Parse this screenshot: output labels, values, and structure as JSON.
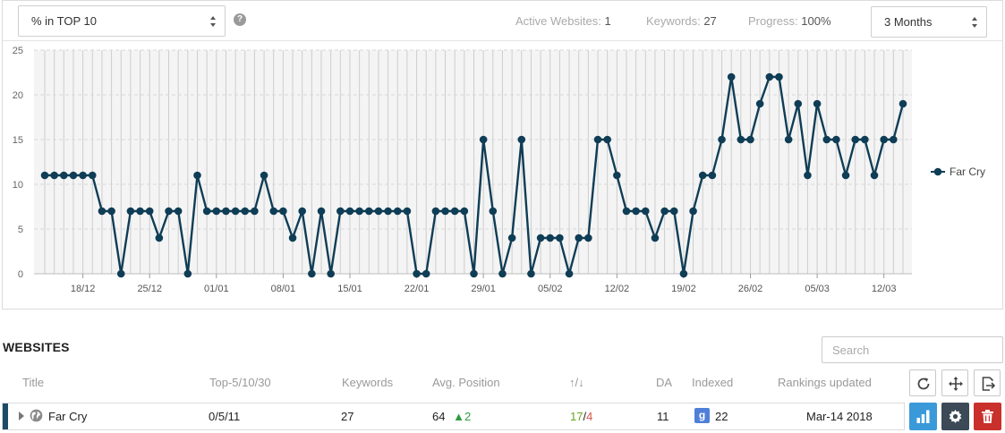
{
  "toolbar": {
    "metric_select": "% in TOP 10",
    "help": "?",
    "period_select": "3 Months",
    "stats": [
      {
        "label": "Active Websites: ",
        "value": "1"
      },
      {
        "label": "Keywords: ",
        "value": "27"
      },
      {
        "label": "Progress: ",
        "value": "100%"
      }
    ]
  },
  "chart_data": {
    "type": "line",
    "y_ticks": [
      "25",
      "20",
      "15",
      "10",
      "5",
      "0"
    ],
    "ylim": [
      0,
      25
    ],
    "x_tick_labels": [
      "18/12",
      "25/12",
      "01/01",
      "08/01",
      "15/01",
      "22/01",
      "29/01",
      "05/02",
      "12/02",
      "19/02",
      "26/02",
      "05/03",
      "12/03"
    ],
    "grid": true,
    "legend_position": "right",
    "series": [
      {
        "name": "Far Cry",
        "color": "#0f3d56",
        "values": [
          11,
          11,
          11,
          11,
          11,
          11,
          7,
          7,
          0,
          7,
          7,
          7,
          4,
          7,
          7,
          0,
          11,
          7,
          7,
          7,
          7,
          7,
          7,
          11,
          7,
          7,
          4,
          7,
          0,
          7,
          0,
          7,
          7,
          7,
          7,
          7,
          7,
          7,
          7,
          0,
          0,
          7,
          7,
          7,
          7,
          0,
          15,
          7,
          0,
          4,
          15,
          0,
          4,
          4,
          4,
          0,
          4,
          4,
          15,
          15,
          11,
          7,
          7,
          7,
          4,
          7,
          7,
          0,
          7,
          11,
          11,
          15,
          22,
          15,
          15,
          19,
          22,
          22,
          15,
          19,
          11,
          19,
          15,
          15,
          11,
          15,
          15,
          11,
          15,
          15,
          19
        ]
      }
    ]
  },
  "websites": {
    "title": "WEBSITES",
    "search_placeholder": "Search",
    "columns": {
      "title": "Title",
      "top": "Top-5/10/30",
      "keywords": "Keywords",
      "avg": "Avg. Position",
      "updown": "↑/↓",
      "da": "DA",
      "indexed": "Indexed",
      "updated": "Rankings updated"
    },
    "rows": [
      {
        "title": "Far Cry",
        "top": "0/5/11",
        "keywords": "27",
        "avg_position": "64",
        "avg_change": "▲2",
        "up": "17",
        "slash": "/",
        "down": "4",
        "da": "11",
        "indexed_badge": "g",
        "indexed": "22",
        "updated": "Mar-14 2018"
      }
    ],
    "colors": {
      "accent_blue": "#3a9ad9",
      "dark": "#3c4a57",
      "danger": "#c9302c",
      "up_green": "#6aa51d",
      "down_red": "#d9534f",
      "google_badge": "#4f7fd8"
    }
  }
}
